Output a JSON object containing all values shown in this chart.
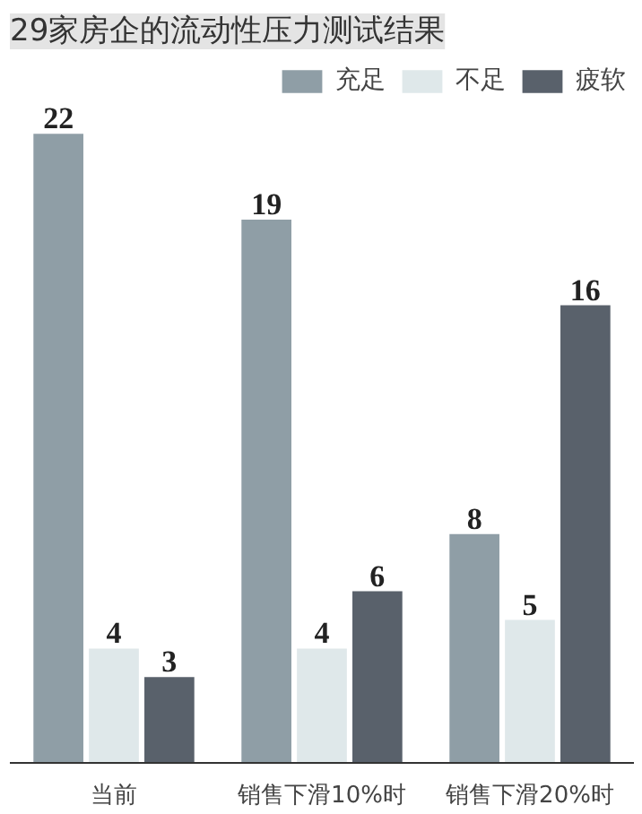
{
  "chart_data": {
    "type": "bar",
    "title": "29家房企的流动性压力测试结果",
    "categories": [
      "当前",
      "销售下滑10%时",
      "销售下滑20%时"
    ],
    "series": [
      {
        "name": "充足",
        "color": "#8f9ea6",
        "values": [
          22,
          19,
          8
        ]
      },
      {
        "name": "不足",
        "color": "#dfe8ea",
        "values": [
          4,
          4,
          5
        ]
      },
      {
        "name": "疲软",
        "color": "#59616b",
        "values": [
          3,
          6,
          16
        ]
      }
    ],
    "tick_labels": "x",
    "data_labels": true,
    "legend": "top right"
  }
}
